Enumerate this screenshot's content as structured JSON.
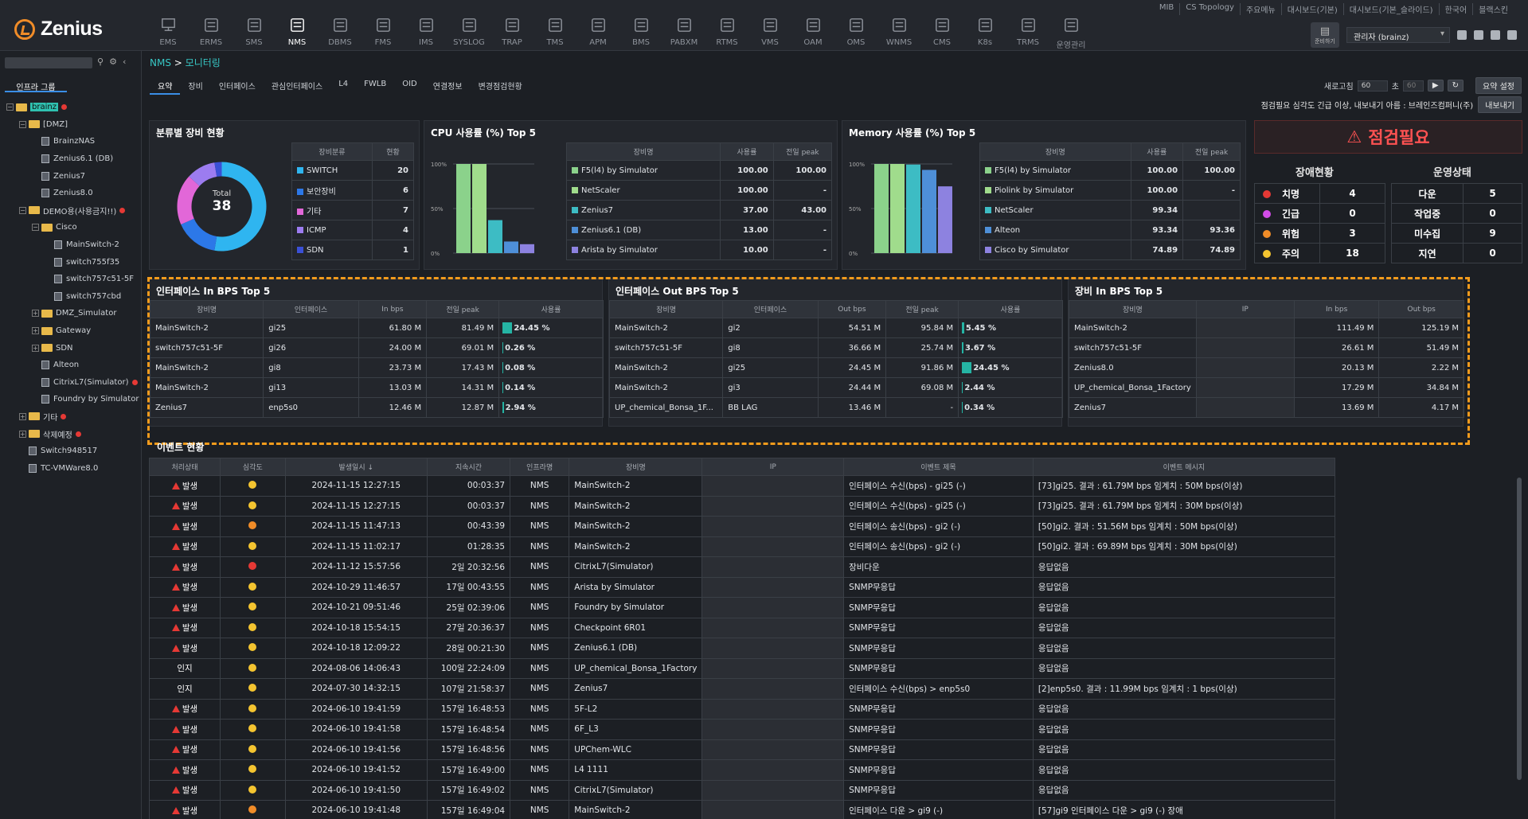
{
  "logo": "Zenius",
  "modules": [
    {
      "label": "EMS",
      "icon": "monitor-icon"
    },
    {
      "label": "ERMS",
      "icon": "network-icon"
    },
    {
      "label": "SMS",
      "icon": "server-icon"
    },
    {
      "label": "NMS",
      "icon": "topology-icon"
    },
    {
      "label": "DBMS",
      "icon": "database-icon"
    },
    {
      "label": "FMS",
      "icon": "gear-box-icon"
    },
    {
      "label": "IMS",
      "icon": "globe-icon"
    },
    {
      "label": "SYSLOG",
      "icon": "log-icon"
    },
    {
      "label": "TRAP",
      "icon": "trap-icon"
    },
    {
      "label": "TMS",
      "icon": "terminal-icon"
    },
    {
      "label": "APM",
      "icon": "app-icon"
    },
    {
      "label": "BMS",
      "icon": "building-icon"
    },
    {
      "label": "PABXM",
      "icon": "phone-icon"
    },
    {
      "label": "RTMS",
      "icon": "chart-icon"
    },
    {
      "label": "VMS",
      "icon": "vm-icon"
    },
    {
      "label": "OAM",
      "icon": "target-icon"
    },
    {
      "label": "OMS",
      "icon": "screen-icon"
    },
    {
      "label": "WNMS",
      "icon": "wifi-icon"
    },
    {
      "label": "CMS",
      "icon": "cloud-icon"
    },
    {
      "label": "K8s",
      "icon": "kubernetes-icon"
    },
    {
      "label": "TRMS",
      "icon": "rack-icon"
    },
    {
      "label": "운영관리",
      "icon": "settings-icon"
    }
  ],
  "toplinks": [
    "MIB",
    "CS Topology",
    "주요메뉴",
    "대시보드(기본)",
    "대시보드(기본_슬라이드)",
    "한국어",
    "블랙스킨"
  ],
  "user": {
    "label": "관리자 (brainz)",
    "btn": "준비하기"
  },
  "sidebar": {
    "tab": "인프라 그룹",
    "tree": [
      {
        "label": "brainz",
        "lvl": 0,
        "exp": "−",
        "type": "fold",
        "hl": true,
        "red": true
      },
      {
        "label": "[DMZ]",
        "lvl": 1,
        "exp": "−",
        "type": "fold"
      },
      {
        "label": "BrainzNAS",
        "lvl": 2,
        "type": "dev"
      },
      {
        "label": "Zenius6.1 (DB)",
        "lvl": 2,
        "type": "dev"
      },
      {
        "label": "Zenius7",
        "lvl": 2,
        "type": "dev"
      },
      {
        "label": "Zenius8.0",
        "lvl": 2,
        "type": "dev"
      },
      {
        "label": "DEMO용(사용금지!!)",
        "lvl": 1,
        "exp": "−",
        "type": "fold",
        "red": true
      },
      {
        "label": "Cisco",
        "lvl": 2,
        "exp": "−",
        "type": "fold"
      },
      {
        "label": "MainSwitch-2",
        "lvl": 3,
        "type": "dev"
      },
      {
        "label": "switch755f35",
        "lvl": 3,
        "type": "dev"
      },
      {
        "label": "switch757c51-5F",
        "lvl": 3,
        "type": "dev"
      },
      {
        "label": "switch757cbd",
        "lvl": 3,
        "type": "dev"
      },
      {
        "label": "DMZ_Simulator",
        "lvl": 2,
        "exp": "+",
        "type": "fold"
      },
      {
        "label": "Gateway",
        "lvl": 2,
        "exp": "+",
        "type": "fold"
      },
      {
        "label": "SDN",
        "lvl": 2,
        "exp": "+",
        "type": "fold"
      },
      {
        "label": "Alteon",
        "lvl": 2,
        "type": "dev"
      },
      {
        "label": "CitrixL7(Simulator)",
        "lvl": 2,
        "type": "dev",
        "red": true
      },
      {
        "label": "Foundry by Simulator",
        "lvl": 2,
        "type": "dev"
      },
      {
        "label": "기타",
        "lvl": 1,
        "exp": "+",
        "type": "fold",
        "red": true
      },
      {
        "label": "삭제예정",
        "lvl": 1,
        "exp": "+",
        "type": "fold",
        "red": true
      },
      {
        "label": "Switch948517",
        "lvl": 1,
        "type": "dev"
      },
      {
        "label": "TC-VMWare8.0",
        "lvl": 1,
        "type": "dev"
      }
    ]
  },
  "breadcrumb": {
    "root": "NMS",
    "sep": ">",
    "page": "모니터링"
  },
  "tabs": [
    "요약",
    "장비",
    "인터페이스",
    "관심인터페이스",
    "L4",
    "FWLB",
    "OID",
    "연결정보",
    "변경점검현황"
  ],
  "refresh": {
    "label": "새로고침",
    "value": "60",
    "unit": "초",
    "countdown": "60",
    "summary_btn": "요약 설정"
  },
  "notice": {
    "text": "점검필요 심각도 긴급 이상, 내보내기 아름 : 브레인즈컴퍼니(주)",
    "btn": "내보내기"
  },
  "device_status": {
    "title": "분류별 장비 현황",
    "total_label": "Total",
    "total": "38",
    "headers": [
      "장비분류",
      "현황"
    ],
    "rows": [
      {
        "name": "SWITCH",
        "value": 20,
        "color": "#2fb5f0"
      },
      {
        "name": "보안장비",
        "value": 6,
        "color": "#2c78e8"
      },
      {
        "name": "기타",
        "value": 7,
        "color": "#e267d8"
      },
      {
        "name": "ICMP",
        "value": 4,
        "color": "#9c7cf0"
      },
      {
        "name": "SDN",
        "value": 1,
        "color": "#3b50d6"
      }
    ]
  },
  "cpu": {
    "title": "CPU 사용률 (%) Top 5",
    "headers": [
      "장비명",
      "사용률",
      "전일 peak"
    ],
    "yticks": [
      "100%",
      "50%",
      "0%"
    ],
    "rows": [
      {
        "name": "F5(l4) by Simulator",
        "value": "100.00",
        "peak": "100.00",
        "color": "#8bd28b"
      },
      {
        "name": "NetScaler",
        "value": "100.00",
        "peak": "-",
        "color": "#a0dc8c"
      },
      {
        "name": "Zenius7",
        "value": "37.00",
        "peak": "43.00",
        "color": "#3dbcc4"
      },
      {
        "name": "Zenius6.1 (DB)",
        "value": "13.00",
        "peak": "-",
        "color": "#4e8fd8"
      },
      {
        "name": "Arista by Simulator",
        "value": "10.00",
        "peak": "-",
        "color": "#8d82e0"
      }
    ]
  },
  "memory": {
    "title": "Memory 사용률 (%) Top 5",
    "headers": [
      "장비명",
      "사용률",
      "전일 peak"
    ],
    "yticks": [
      "100%",
      "50%",
      "0%"
    ],
    "rows": [
      {
        "name": "F5(l4) by Simulator",
        "value": "100.00",
        "peak": "100.00",
        "color": "#8bd28b"
      },
      {
        "name": "Piolink by Simulator",
        "value": "100.00",
        "peak": "-",
        "color": "#a0dc8c"
      },
      {
        "name": "NetScaler",
        "value": "99.34",
        "peak": "",
        "color": "#3dbcc4"
      },
      {
        "name": "Alteon",
        "value": "93.34",
        "peak": "93.36",
        "color": "#4e8fd8"
      },
      {
        "name": "Cisco by Simulator",
        "value": "74.89",
        "peak": "74.89",
        "color": "#8d82e0"
      }
    ]
  },
  "alarm": {
    "title": "점검필요",
    "fault_title": "장애현황",
    "op_title": "운영상태",
    "faults": [
      {
        "label": "치명",
        "value": "4",
        "color": "#e53935"
      },
      {
        "label": "긴급",
        "value": "0",
        "color": "#d24ce8"
      },
      {
        "label": "위험",
        "value": "3",
        "color": "#f08c28"
      },
      {
        "label": "주의",
        "value": "18",
        "color": "#f4c430"
      }
    ],
    "ops": [
      {
        "label": "다운",
        "value": "5"
      },
      {
        "label": "작업중",
        "value": "0"
      },
      {
        "label": "미수집",
        "value": "9"
      },
      {
        "label": "지연",
        "value": "0"
      }
    ]
  },
  "if_in": {
    "title": "인터페이스 In BPS Top 5",
    "headers": [
      "장비명",
      "인터페이스",
      "In bps",
      "전일 peak",
      "사용률"
    ],
    "rows": [
      {
        "dev": "MainSwitch-2",
        "if": "gi25",
        "bps": "61.80 M",
        "peak": "81.49 M",
        "use": "24.45 %",
        "pct": 24.45
      },
      {
        "dev": "switch757c51-5F",
        "if": "gi26",
        "bps": "24.00 M",
        "peak": "69.01 M",
        "use": "0.26 %",
        "pct": 0.26
      },
      {
        "dev": "MainSwitch-2",
        "if": "gi8",
        "bps": "23.73 M",
        "peak": "17.43 M",
        "use": "0.08 %",
        "pct": 0.08
      },
      {
        "dev": "MainSwitch-2",
        "if": "gi13",
        "bps": "13.03 M",
        "peak": "14.31 M",
        "use": "0.14 %",
        "pct": 0.14
      },
      {
        "dev": "Zenius7",
        "if": "enp5s0",
        "bps": "12.46 M",
        "peak": "12.87 M",
        "use": "2.94 %",
        "pct": 2.94
      }
    ]
  },
  "if_out": {
    "title": "인터페이스 Out BPS Top 5",
    "headers": [
      "장비명",
      "인터페이스",
      "Out bps",
      "전일 peak",
      "사용률"
    ],
    "rows": [
      {
        "dev": "MainSwitch-2",
        "if": "gi2",
        "bps": "54.51 M",
        "peak": "95.84 M",
        "use": "5.45 %",
        "pct": 5.45
      },
      {
        "dev": "switch757c51-5F",
        "if": "gi8",
        "bps": "36.66 M",
        "peak": "25.74 M",
        "use": "3.67 %",
        "pct": 3.67
      },
      {
        "dev": "MainSwitch-2",
        "if": "gi25",
        "bps": "24.45 M",
        "peak": "91.86 M",
        "use": "24.45 %",
        "pct": 24.45
      },
      {
        "dev": "MainSwitch-2",
        "if": "gi3",
        "bps": "24.44 M",
        "peak": "69.08 M",
        "use": "2.44 %",
        "pct": 2.44
      },
      {
        "dev": "UP_chemical_Bonsa_1F...",
        "if": "BB LAG",
        "bps": "13.46 M",
        "peak": "-",
        "use": "0.34 %",
        "pct": 0.34
      }
    ]
  },
  "dev_in": {
    "title": "장비 In BPS Top 5",
    "headers": [
      "장비명",
      "IP",
      "In bps",
      "Out bps"
    ],
    "rows": [
      {
        "dev": "MainSwitch-2",
        "in": "111.49 M",
        "out": "125.19 M"
      },
      {
        "dev": "switch757c51-5F",
        "in": "26.61 M",
        "out": "51.49 M"
      },
      {
        "dev": "Zenius8.0",
        "in": "20.13 M",
        "out": "2.22 M"
      },
      {
        "dev": "UP_chemical_Bonsa_1Factory",
        "in": "17.29 M",
        "out": "34.84 M"
      },
      {
        "dev": "Zenius7",
        "in": "13.69 M",
        "out": "4.17 M"
      }
    ]
  },
  "events": {
    "title": "이벤트 현황",
    "headers": [
      "처리상태",
      "심각도",
      "발생일시 ↓",
      "지속시간",
      "인프라명",
      "장비명",
      "IP",
      "이벤트 제목",
      "이벤트 메시지"
    ],
    "rows": [
      {
        "state": "발생",
        "tri": true,
        "sev": "#f4c430",
        "time": "2024-11-15 12:27:15",
        "dur": "00:03:37",
        "infra": "NMS",
        "dev": "MainSwitch-2",
        "title": "인터페이스 수신(bps) - gi25 (-)",
        "msg": "[73]gi25. 결과 : 61.79M bps 임계치 : 50M bps(이상)"
      },
      {
        "state": "발생",
        "tri": true,
        "sev": "#f4c430",
        "time": "2024-11-15 12:27:15",
        "dur": "00:03:37",
        "infra": "NMS",
        "dev": "MainSwitch-2",
        "title": "인터페이스 수신(bps) - gi25 (-)",
        "msg": "[73]gi25. 결과 : 61.79M bps 임계치 : 30M bps(이상)"
      },
      {
        "state": "발생",
        "tri": true,
        "sev": "#f08c28",
        "time": "2024-11-15 11:47:13",
        "dur": "00:43:39",
        "infra": "NMS",
        "dev": "MainSwitch-2",
        "title": "인터페이스 송신(bps) - gi2 (-)",
        "msg": "[50]gi2. 결과 : 51.56M bps 임계치 : 50M bps(이상)"
      },
      {
        "state": "발생",
        "tri": true,
        "sev": "#f4c430",
        "time": "2024-11-15 11:02:17",
        "dur": "01:28:35",
        "infra": "NMS",
        "dev": "MainSwitch-2",
        "title": "인터페이스 송신(bps) - gi2 (-)",
        "msg": "[50]gi2. 결과 : 69.89M bps 임계치 : 30M bps(이상)"
      },
      {
        "state": "발생",
        "tri": true,
        "sev": "#e53935",
        "time": "2024-11-12 15:57:56",
        "dur": "2일 20:32:56",
        "infra": "NMS",
        "dev": "CitrixL7(Simulator)",
        "title": "장비다운",
        "msg": "응답없음"
      },
      {
        "state": "발생",
        "tri": true,
        "sev": "#f4c430",
        "time": "2024-10-29 11:46:57",
        "dur": "17일 00:43:55",
        "infra": "NMS",
        "dev": "Arista by Simulator",
        "title": "SNMP무응답",
        "msg": "응답없음"
      },
      {
        "state": "발생",
        "tri": true,
        "sev": "#f4c430",
        "time": "2024-10-21 09:51:46",
        "dur": "25일 02:39:06",
        "infra": "NMS",
        "dev": "Foundry by Simulator",
        "title": "SNMP무응답",
        "msg": "응답없음"
      },
      {
        "state": "발생",
        "tri": true,
        "sev": "#f4c430",
        "time": "2024-10-18 15:54:15",
        "dur": "27일 20:36:37",
        "infra": "NMS",
        "dev": "Checkpoint 6R01",
        "title": "SNMP무응답",
        "msg": "응답없음"
      },
      {
        "state": "발생",
        "tri": true,
        "sev": "#f4c430",
        "time": "2024-10-18 12:09:22",
        "dur": "28일 00:21:30",
        "infra": "NMS",
        "dev": "Zenius6.1 (DB)",
        "title": "SNMP무응답",
        "msg": "응답없음"
      },
      {
        "state": "인지",
        "tri": false,
        "sev": "#f4c430",
        "time": "2024-08-06 14:06:43",
        "dur": "100일 22:24:09",
        "infra": "NMS",
        "dev": "UP_chemical_Bonsa_1Factory",
        "title": "SNMP무응답",
        "msg": "응답없음"
      },
      {
        "state": "인지",
        "tri": false,
        "sev": "#f4c430",
        "time": "2024-07-30 14:32:15",
        "dur": "107일 21:58:37",
        "infra": "NMS",
        "dev": "Zenius7",
        "title": "인터페이스 수신(bps) > enp5s0",
        "msg": "[2]enp5s0. 결과 : 11.99M bps 임계치 : 1 bps(이상)"
      },
      {
        "state": "발생",
        "tri": true,
        "sev": "#f4c430",
        "time": "2024-06-10 19:41:59",
        "dur": "157일 16:48:53",
        "infra": "NMS",
        "dev": "5F-L2",
        "title": "SNMP무응답",
        "msg": "응답없음"
      },
      {
        "state": "발생",
        "tri": true,
        "sev": "#f4c430",
        "time": "2024-06-10 19:41:58",
        "dur": "157일 16:48:54",
        "infra": "NMS",
        "dev": "6F_L3",
        "title": "SNMP무응답",
        "msg": "응답없음"
      },
      {
        "state": "발생",
        "tri": true,
        "sev": "#f4c430",
        "time": "2024-06-10 19:41:56",
        "dur": "157일 16:48:56",
        "infra": "NMS",
        "dev": "UPChem-WLC",
        "title": "SNMP무응답",
        "msg": "응답없음"
      },
      {
        "state": "발생",
        "tri": true,
        "sev": "#f4c430",
        "time": "2024-06-10 19:41:52",
        "dur": "157일 16:49:00",
        "infra": "NMS",
        "dev": "L4 1111",
        "title": "SNMP무응답",
        "msg": "응답없음"
      },
      {
        "state": "발생",
        "tri": true,
        "sev": "#f4c430",
        "time": "2024-06-10 19:41:50",
        "dur": "157일 16:49:02",
        "infra": "NMS",
        "dev": "CitrixL7(Simulator)",
        "title": "SNMP무응답",
        "msg": "응답없음"
      },
      {
        "state": "발생",
        "tri": true,
        "sev": "#f08c28",
        "time": "2024-06-10 19:41:48",
        "dur": "157일 16:49:04",
        "infra": "NMS",
        "dev": "MainSwitch-2",
        "title": "인터페이스 다운 > gi9 (-)",
        "msg": "[57]gi9 인터페이스 다운 > gi9 (-) 장애"
      }
    ]
  }
}
